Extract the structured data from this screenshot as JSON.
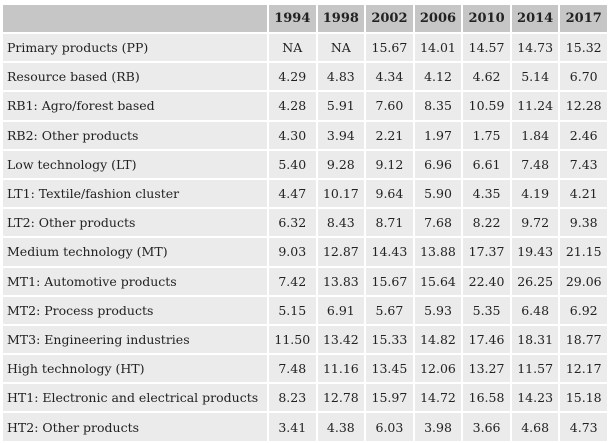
{
  "table": {
    "header": [
      "1994",
      "1998",
      "2002",
      "2006",
      "2010",
      "2014",
      "2017"
    ],
    "rows": [
      [
        "Primary products (PP)",
        "NA",
        "NA",
        "15.67",
        "14.01",
        "14.57",
        "14.73",
        "15.32"
      ],
      [
        "Resource based (RB)",
        "4.29",
        "4.83",
        "4.34",
        "4.12",
        "4.62",
        "5.14",
        "6.70"
      ],
      [
        "RB1: Agro/forest based",
        "4.28",
        "5.91",
        "7.60",
        "8.35",
        "10.59",
        "11.24",
        "12.28"
      ],
      [
        "RB2: Other products",
        "4.30",
        "3.94",
        "2.21",
        "1.97",
        "1.75",
        "1.84",
        "2.46"
      ],
      [
        "Low technology (LT)",
        "5.40",
        "9.28",
        "9.12",
        "6.96",
        "6.61",
        "7.48",
        "7.43"
      ],
      [
        "LT1: Textile/fashion cluster",
        "4.47",
        "10.17",
        "9.64",
        "5.90",
        "4.35",
        "4.19",
        "4.21"
      ],
      [
        "LT2: Other products",
        "6.32",
        "8.43",
        "8.71",
        "7.68",
        "8.22",
        "9.72",
        "9.38"
      ],
      [
        "Medium technology (MT)",
        "9.03",
        "12.87",
        "14.43",
        "13.88",
        "17.37",
        "19.43",
        "21.15"
      ],
      [
        "MT1: Automotive products",
        "7.42",
        "13.83",
        "15.67",
        "15.64",
        "22.40",
        "26.25",
        "29.06"
      ],
      [
        "MT2: Process products",
        "5.15",
        "6.91",
        "5.67",
        "5.93",
        "5.35",
        "6.48",
        "6.92"
      ],
      [
        "MT3: Engineering industries",
        "11.50",
        "13.42",
        "15.33",
        "14.82",
        "17.46",
        "18.31",
        "18.77"
      ],
      [
        "High technology (HT)",
        "7.48",
        "11.16",
        "13.45",
        "12.06",
        "13.27",
        "11.57",
        "12.17"
      ],
      [
        "HT1: Electronic and electrical products",
        "8.23",
        "12.78",
        "15.97",
        "14.72",
        "16.58",
        "14.23",
        "15.18"
      ],
      [
        "HT2: Other products",
        "3.41",
        "4.38",
        "6.03",
        "3.98",
        "3.66",
        "4.68",
        "4.73"
      ]
    ]
  }
}
